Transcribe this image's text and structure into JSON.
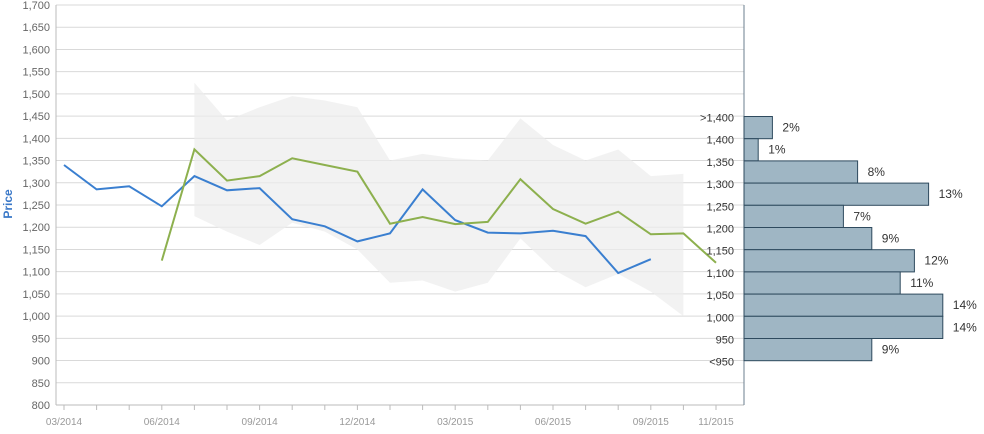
{
  "chart_data": {
    "type": "line",
    "title": "",
    "xlabel": "",
    "ylabel": "Price",
    "ylim": [
      800,
      1700
    ],
    "y_ticks": [
      "1,700",
      "1,650",
      "1,600",
      "1,550",
      "1,500",
      "1,450",
      "1,400",
      "1,350",
      "1,300",
      "1,250",
      "1,200",
      "1,150",
      "1,100",
      "1,050",
      "1,000",
      "950",
      "900",
      "850",
      "800"
    ],
    "x_tick_labels": [
      "03/2014",
      "06/2014",
      "09/2014",
      "12/2014",
      "03/2015",
      "06/2015",
      "09/2015",
      "11/2015"
    ],
    "grid": true,
    "months": [
      "03/2014",
      "04/2014",
      "05/2014",
      "06/2014",
      "07/2014",
      "08/2014",
      "09/2014",
      "10/2014",
      "11/2014",
      "12/2014",
      "01/2015",
      "02/2015",
      "03/2015",
      "04/2015",
      "05/2015",
      "06/2015",
      "07/2015",
      "08/2015",
      "09/2015",
      "10/2015",
      "11/2015"
    ],
    "band": {
      "upper": [
        null,
        null,
        null,
        null,
        1525,
        1440,
        1470,
        1495,
        1485,
        1470,
        1350,
        1365,
        1355,
        1350,
        1445,
        1385,
        1350,
        1375,
        1315,
        1320,
        null
      ],
      "lower": [
        null,
        null,
        null,
        null,
        1225,
        1190,
        1160,
        1210,
        1190,
        1150,
        1075,
        1080,
        1055,
        1075,
        1175,
        1105,
        1065,
        1095,
        1055,
        1000,
        null
      ]
    },
    "series": [
      {
        "name": "",
        "color": "#3a7fd0",
        "values": [
          1340,
          1285,
          1292,
          1247,
          1315,
          1283,
          1288,
          1218,
          1202,
          1168,
          1186,
          1285,
          1216,
          1188,
          1186,
          1192,
          1180,
          1097,
          1128,
          null,
          null
        ]
      },
      {
        "name": "",
        "color": "#8db04e",
        "values": [
          null,
          null,
          null,
          1125,
          1375,
          1305,
          1315,
          1355,
          1340,
          1325,
          1208,
          1223,
          1207,
          1212,
          1308,
          1241,
          1208,
          1235,
          1184,
          1186,
          1120
        ]
      }
    ],
    "histogram": {
      "labels": [
        ">1,400",
        "1,400",
        "1,350",
        "1,300",
        "1,250",
        "1,200",
        "1,150",
        "1,100",
        "1,050",
        "1,000",
        "950",
        "<950"
      ],
      "percent_labels": [
        "2%",
        "1%",
        "8%",
        "13%",
        "7%",
        "9%",
        "12%",
        "11%",
        "14%",
        "14%",
        "9%",
        ""
      ],
      "values": [
        2,
        1,
        8,
        13,
        7,
        9,
        12,
        11,
        14,
        14,
        9,
        0
      ],
      "fill": "#9fb6c4",
      "stroke": "#2e4a5e"
    }
  }
}
